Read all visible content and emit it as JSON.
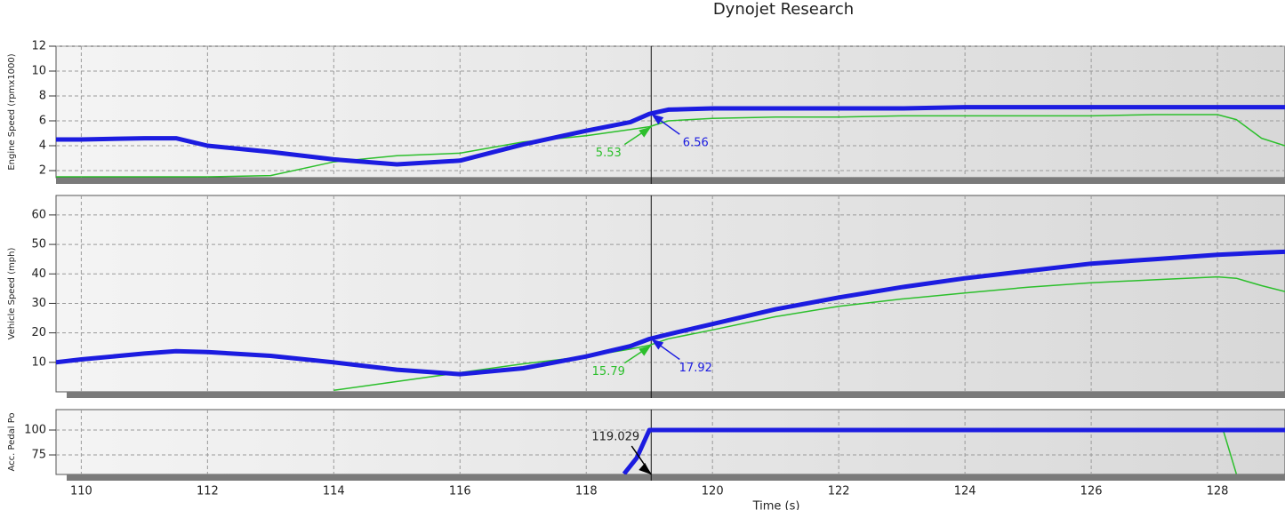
{
  "chart_data": [
    {
      "type": "line",
      "title": "Dynojet Research",
      "ylabel": "Engine Speed (rpmx1000)",
      "x": [
        109.6,
        110,
        111,
        111.5,
        112,
        113,
        114,
        115,
        116,
        117,
        118,
        118.7,
        119,
        119.3,
        120,
        121,
        122,
        123,
        124,
        125,
        126,
        127,
        128,
        128.3,
        128.7,
        129.07
      ],
      "series": [
        {
          "color": "#1c1ce0",
          "values": [
            4.5,
            4.5,
            4.6,
            4.6,
            4.0,
            3.5,
            2.9,
            2.5,
            2.8,
            4.1,
            5.2,
            5.9,
            6.56,
            6.9,
            7.0,
            7.0,
            7.0,
            7.0,
            7.1,
            7.1,
            7.1,
            7.1,
            7.1,
            7.1,
            7.1,
            7.1
          ]
        },
        {
          "color": "#2cbf2c",
          "values": [
            1.5,
            1.5,
            1.5,
            1.5,
            1.5,
            1.6,
            2.7,
            3.2,
            3.4,
            4.3,
            4.8,
            5.3,
            5.53,
            6.0,
            6.2,
            6.3,
            6.3,
            6.4,
            6.4,
            6.4,
            6.4,
            6.5,
            6.5,
            6.1,
            4.6,
            4.0
          ]
        }
      ],
      "xlim": [
        109.6,
        129.07
      ],
      "ylim": [
        1.43,
        12
      ],
      "yticks": [
        2,
        4,
        6,
        8,
        10,
        12
      ],
      "grid": true
    },
    {
      "type": "line",
      "ylabel": "Vehicle Speed (mph)",
      "x": [
        109.6,
        110,
        111,
        111.5,
        112,
        113,
        114,
        115,
        116,
        117,
        118,
        118.7,
        119,
        119.3,
        120,
        121,
        122,
        123,
        124,
        125,
        126,
        127,
        128,
        128.3,
        128.7,
        129.07
      ],
      "series": [
        {
          "color": "#1c1ce0",
          "values": [
            10,
            11,
            13,
            13.8,
            13.5,
            12.2,
            10,
            7.5,
            6,
            8,
            12,
            15.5,
            17.92,
            19.5,
            23,
            28,
            32,
            35.5,
            38.5,
            41,
            43.5,
            45,
            46.5,
            46.8,
            47.2,
            47.5
          ]
        },
        {
          "color": "#2cbf2c",
          "values": [
            null,
            null,
            null,
            null,
            null,
            null,
            0.5,
            3.5,
            6.5,
            9.5,
            12,
            14.5,
            15.79,
            18,
            21,
            25.5,
            29,
            31.5,
            33.5,
            35.5,
            37,
            38,
            39,
            38.5,
            36,
            34
          ]
        }
      ],
      "xlim": [
        109.6,
        129.07
      ],
      "ylim": [
        0,
        66.6
      ],
      "yticks": [
        10,
        20,
        30,
        40,
        50,
        60
      ],
      "grid": true
    },
    {
      "type": "line",
      "ylabel": "Acc. Pedal Po",
      "xlabel": "Time (s)",
      "x": [
        118.6,
        118.8,
        119,
        120,
        122,
        124,
        126,
        128,
        128.1,
        128.3,
        129.07
      ],
      "series": [
        {
          "color": "#1c1ce0",
          "values": [
            56,
            72,
            100,
            100,
            100,
            100,
            100,
            100,
            100,
            100,
            100
          ]
        },
        {
          "color": "#2cbf2c",
          "values": [
            null,
            null,
            100,
            100,
            100,
            100,
            100,
            100,
            98,
            56,
            null
          ]
        }
      ],
      "cursor": 119.029,
      "xlim": [
        109.6,
        129.07
      ],
      "ylim": [
        55.4,
        120.5
      ],
      "yticks": [
        75,
        100
      ],
      "xticks": [
        110,
        112,
        114,
        116,
        118,
        120,
        122,
        124,
        126,
        128
      ],
      "grid": true
    }
  ]
}
